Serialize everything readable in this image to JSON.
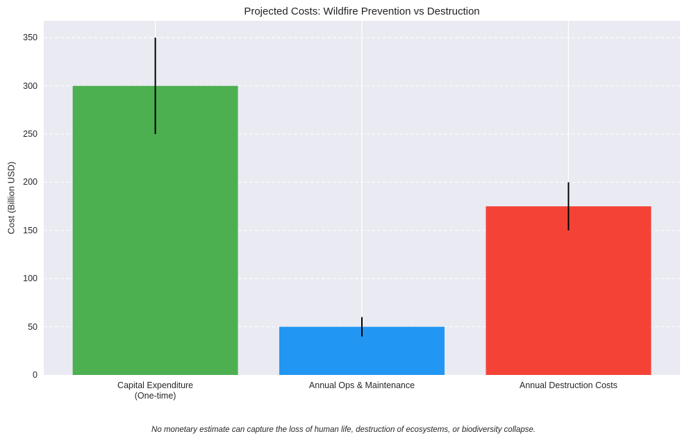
{
  "chart_data": {
    "type": "bar",
    "title": "Projected Costs: Wildfire Prevention vs Destruction",
    "xlabel": "",
    "ylabel": "Cost (Billion USD)",
    "categories": [
      "Capital Expenditure\n(One-time)",
      "Annual Ops & Maintenance",
      "Annual Destruction Costs"
    ],
    "values": [
      300,
      50,
      175
    ],
    "errors": [
      50,
      10,
      25
    ],
    "colors": [
      "#4caf50",
      "#2196f3",
      "#f44336"
    ],
    "ylim": [
      0,
      367.5
    ],
    "yticks": [
      0,
      50,
      100,
      150,
      200,
      250,
      300,
      350
    ],
    "grid": true,
    "background": "#eaeaf2",
    "annotation": "No monetary estimate can capture the loss of human life, destruction of ecosystems, or biodiversity collapse."
  }
}
